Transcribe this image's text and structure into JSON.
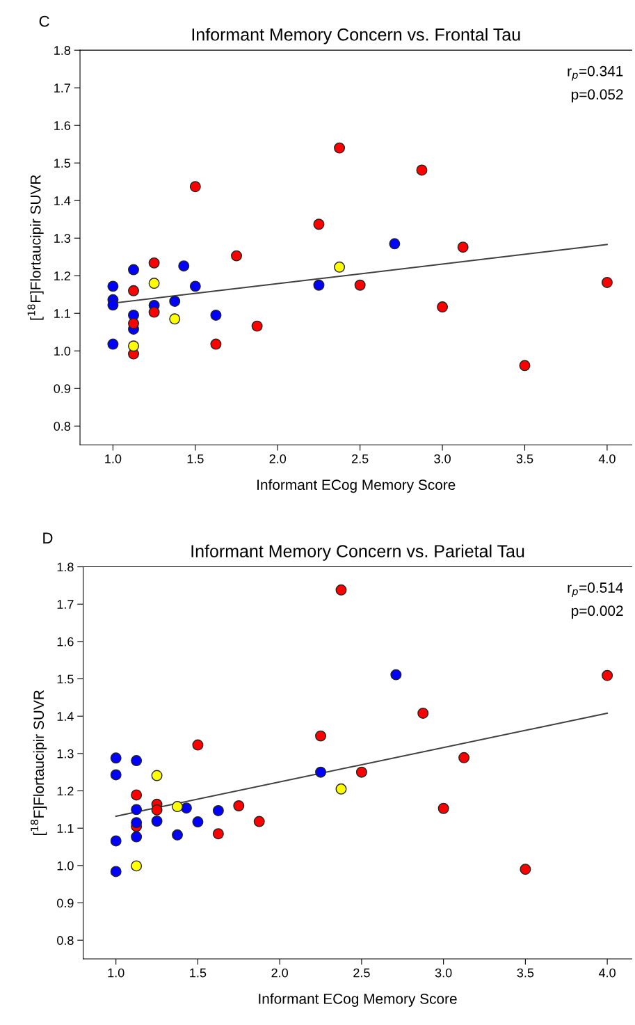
{
  "chart_data": [
    {
      "type": "scatter",
      "title": "Informant Memory Concern vs. Frontal Tau",
      "xlabel": "Informant ECog Memory Score",
      "ylabel": "[$^{18}$F]Flortaucipir SUVR",
      "annotations": [
        "C",
        "r$_{p}$=0.341",
        "p=0.052"
      ],
      "marker": "circle",
      "grid": false,
      "legend": false,
      "xlim": [
        0.8,
        4.15
      ],
      "ylim": [
        0.75,
        1.8
      ],
      "xticks": [
        {
          "value": 1,
          "label": "1.0"
        },
        1.5,
        {
          "value": 2,
          "label": "2.0"
        },
        2.5,
        {
          "value": 3,
          "label": "3.0"
        },
        3.5,
        {
          "value": 4,
          "label": "4.0"
        }
      ],
      "yticks": [
        0.8,
        0.9,
        {
          "value": 1,
          "label": "1.0"
        },
        1.1,
        1.2,
        1.3,
        1.4,
        1.5,
        1.6,
        1.7,
        1.8
      ],
      "series": [
        {
          "color": "#0000ff",
          "x": [
            1.0,
            1.0,
            1.0,
            1.0,
            1.125,
            1.125,
            1.125,
            1.25,
            1.43,
            1.375,
            1.5,
            1.625,
            2.25,
            2.71
          ],
          "values": [
            1.172,
            1.136,
            1.122,
            1.018,
            1.216,
            1.095,
            1.058,
            1.121,
            1.226,
            1.132,
            1.172,
            1.095,
            1.175,
            1.285
          ]
        },
        {
          "color": "#ff0000",
          "x": [
            1.125,
            1.125,
            1.125,
            1.25,
            1.25,
            1.5,
            1.625,
            1.75,
            1.875,
            2.375,
            2.25,
            2.5,
            2.875,
            3.125,
            3.0,
            3.5,
            4.0
          ],
          "values": [
            1.16,
            1.073,
            0.992,
            1.234,
            1.103,
            1.437,
            1.018,
            1.253,
            1.066,
            1.54,
            1.337,
            1.175,
            1.481,
            1.276,
            1.117,
            0.961,
            1.182
          ]
        },
        {
          "color": "#ffff00",
          "x": [
            1.125,
            1.25,
            1.375,
            2.375
          ],
          "values": [
            1.013,
            1.18,
            1.085,
            1.223
          ]
        },
        {
          "type": "line",
          "marker": "none",
          "color": "#404040",
          "x": [
            1.0,
            4.0
          ],
          "values": [
            1.127,
            1.283
          ]
        }
      ]
    },
    {
      "type": "scatter",
      "title": "Informant Memory Concern vs. Parietal Tau",
      "xlabel": "Informant ECog Memory Score",
      "ylabel": "[$^{18}$F]Flortaucipir SUVR",
      "annotations": [
        "D",
        "r$_{p}$=0.514",
        "p=0.002"
      ],
      "marker": "circle",
      "grid": false,
      "legend": false,
      "xlim": [
        0.8,
        4.15
      ],
      "ylim": [
        0.75,
        1.8
      ],
      "xticks": [
        {
          "value": 1,
          "label": "1.0"
        },
        1.5,
        {
          "value": 2,
          "label": "2.0"
        },
        2.5,
        {
          "value": 3,
          "label": "3.0"
        },
        3.5,
        {
          "value": 4,
          "label": "4.0"
        }
      ],
      "yticks": [
        0.8,
        0.9,
        {
          "value": 1,
          "label": "1.0"
        },
        1.1,
        1.2,
        1.3,
        1.4,
        1.5,
        1.6,
        1.7,
        1.8
      ],
      "series": [
        {
          "color": "#ff0000",
          "x": [
            1.125,
            1.125,
            1.25,
            1.25,
            1.5,
            1.625,
            1.75,
            1.875,
            2.375,
            4.0,
            2.875,
            2.25,
            3.125,
            2.5,
            3.0,
            3.5
          ],
          "values": [
            1.189,
            1.105,
            1.164,
            1.149,
            1.323,
            1.085,
            1.16,
            1.118,
            1.738,
            1.509,
            1.408,
            1.347,
            1.289,
            1.25,
            1.153,
            0.99
          ]
        },
        {
          "color": "#0000ff",
          "x": [
            1.0,
            1.0,
            1.0,
            1.0,
            1.125,
            1.125,
            1.125,
            1.125,
            1.25,
            1.375,
            1.43,
            1.5,
            1.625,
            2.71,
            2.25
          ],
          "values": [
            1.288,
            1.243,
            1.066,
            0.984,
            1.281,
            1.15,
            1.115,
            1.077,
            1.119,
            1.082,
            1.154,
            1.117,
            1.147,
            1.511,
            1.25
          ]
        },
        {
          "color": "#ffff00",
          "x": [
            1.125,
            1.25,
            1.375,
            2.375
          ],
          "values": [
            0.999,
            1.241,
            1.158,
            1.205
          ]
        },
        {
          "type": "line",
          "marker": "none",
          "color": "#404040",
          "x": [
            1.0,
            4.0
          ],
          "values": [
            1.132,
            1.408
          ]
        }
      ]
    }
  ]
}
